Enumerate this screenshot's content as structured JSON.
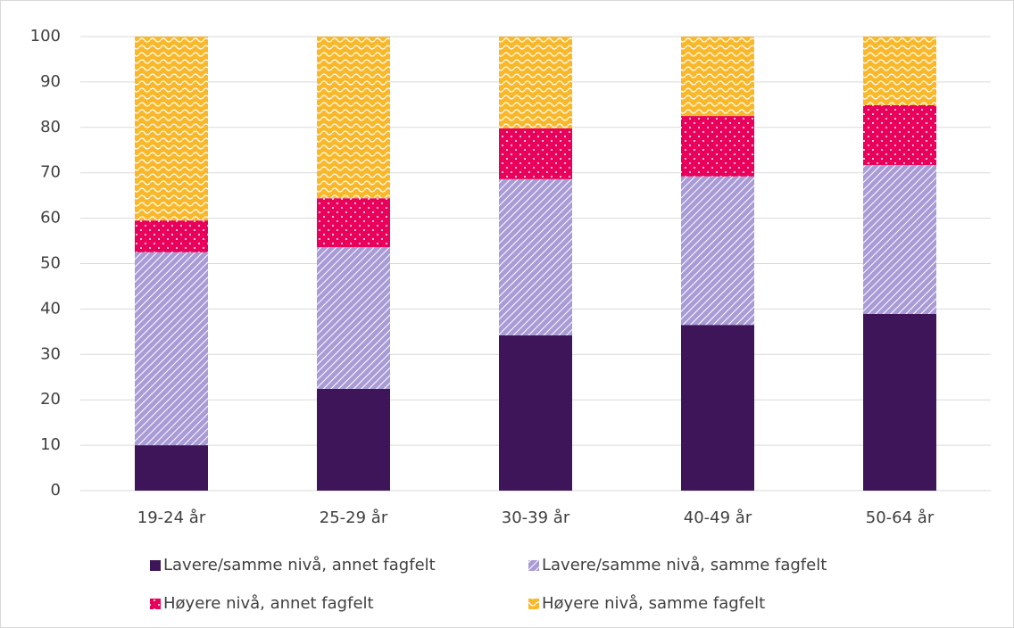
{
  "chart_data": {
    "type": "stacked_bar",
    "categories": [
      "19-24 år",
      "25-29 år",
      "30-39 år",
      "40-49 år",
      "50-64 år"
    ],
    "series": [
      {
        "name": "Lavere/samme nivå, annet fagfelt",
        "color": "#3d1558",
        "values": [
          10.0,
          22.4,
          34.2,
          36.5,
          38.9
        ]
      },
      {
        "name": "Lavere/samme nivå, samme fagfelt",
        "color": "#a99bd6",
        "values": [
          42.5,
          31.2,
          34.4,
          32.7,
          32.8
        ]
      },
      {
        "name": "Høyere nivå, annet fagfelt",
        "color": "#e8005a",
        "values": [
          7.0,
          10.8,
          11.2,
          13.3,
          13.2
        ]
      },
      {
        "name": "Høyere nivå, samme fagfelt",
        "color": "#f9b82a",
        "values": [
          40.5,
          35.6,
          20.2,
          17.5,
          15.1
        ]
      }
    ],
    "ylim": [
      0,
      100
    ],
    "yticks": [
      0,
      10,
      20,
      30,
      40,
      50,
      60,
      70,
      80,
      90,
      100
    ],
    "grid": true,
    "legend": "bottom"
  }
}
